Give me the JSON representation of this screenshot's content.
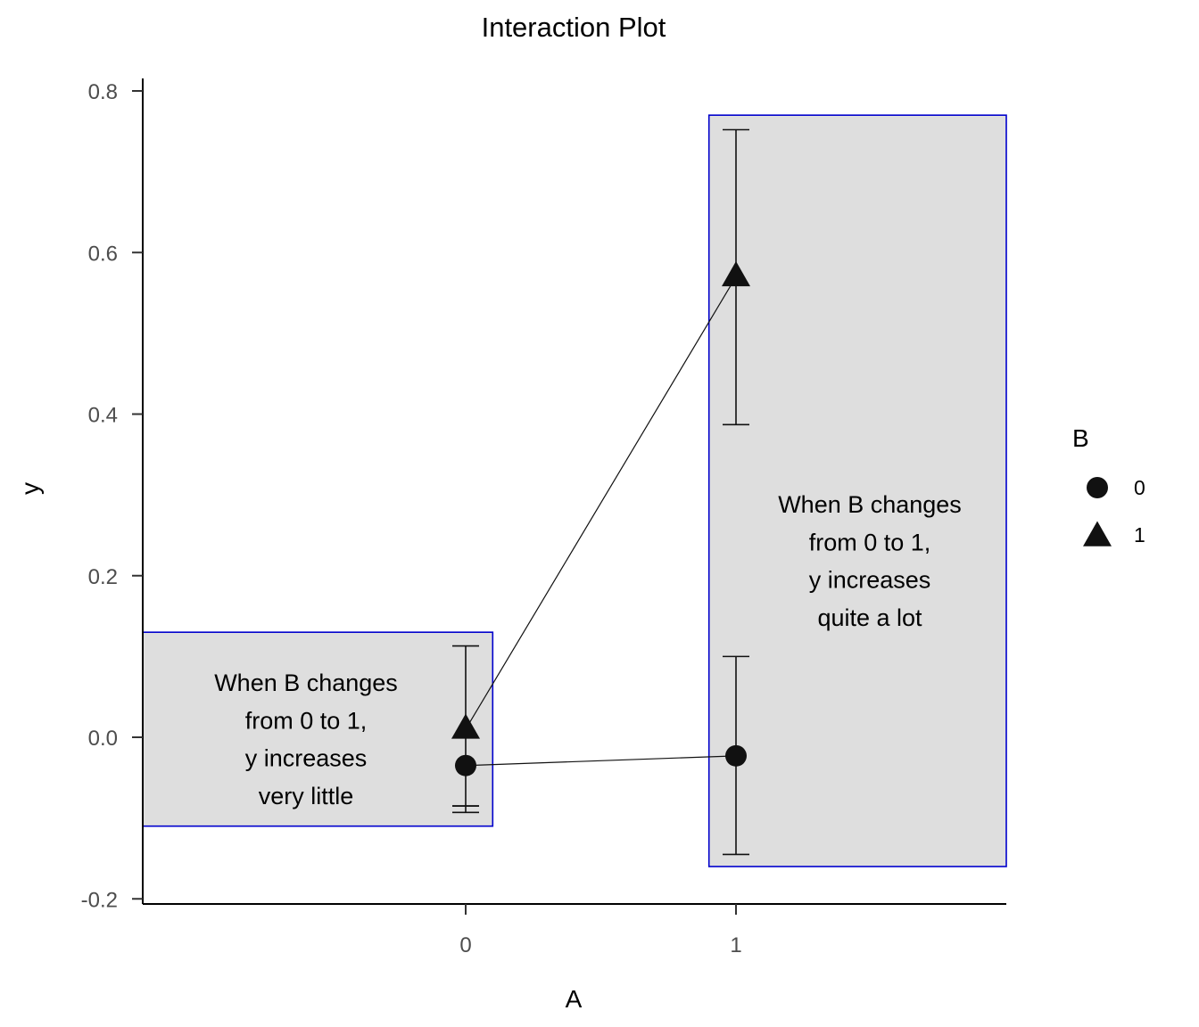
{
  "chart_data": {
    "type": "scatter",
    "title": "Interaction Plot",
    "xlabel": "A",
    "ylabel": "y",
    "categories": [
      "0",
      "1"
    ],
    "ylim": [
      -0.2,
      0.8
    ],
    "yticks": [
      "-0.2",
      "0.0",
      "0.2",
      "0.4",
      "0.6",
      "0.8"
    ],
    "grid": false,
    "legend": {
      "title": "B",
      "placement": "right"
    },
    "series": [
      {
        "name": "0",
        "marker": "circle",
        "values": [
          -0.035,
          -0.023
        ],
        "lower": [
          -0.093,
          -0.145
        ],
        "upper": [
          -0.085,
          0.1
        ]
      },
      {
        "name": "1",
        "marker": "triangle",
        "values": [
          0.01,
          0.57
        ],
        "lower": [
          -0.085,
          0.387
        ],
        "upper": [
          0.113,
          0.752
        ]
      }
    ],
    "annotations": [
      {
        "lines": [
          "When B changes",
          "from 0 to 1,",
          "y increases",
          "very little"
        ],
        "x_range": [
          -1.2,
          0.1
        ],
        "y_range": [
          -0.11,
          0.13
        ]
      },
      {
        "lines": [
          "When B changes",
          "from 0 to 1,",
          "y increases",
          "quite a lot"
        ],
        "x_range": [
          0.9,
          2.0
        ],
        "y_range": [
          -0.16,
          0.77
        ]
      }
    ],
    "colors": {
      "annotation_fill": "#dedede",
      "annotation_border": "#0000cc",
      "marks": "#111111"
    }
  }
}
